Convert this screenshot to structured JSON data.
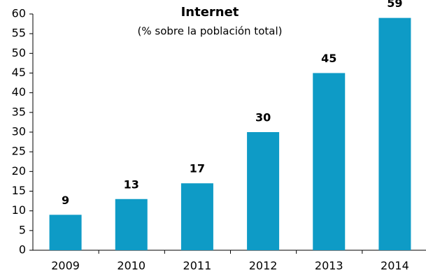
{
  "chart_data": {
    "type": "bar",
    "title": "Internet",
    "subtitle": "(% sobre  la población total)",
    "categories": [
      "2009",
      "2010",
      "2011",
      "2012",
      "2013",
      "2014"
    ],
    "values": [
      9,
      13,
      17,
      30,
      45,
      59
    ],
    "color": "#0e9bc6",
    "ylim": [
      0,
      60
    ],
    "yticks": [
      0,
      5,
      10,
      15,
      20,
      25,
      30,
      35,
      40,
      45,
      50,
      55,
      60
    ]
  }
}
